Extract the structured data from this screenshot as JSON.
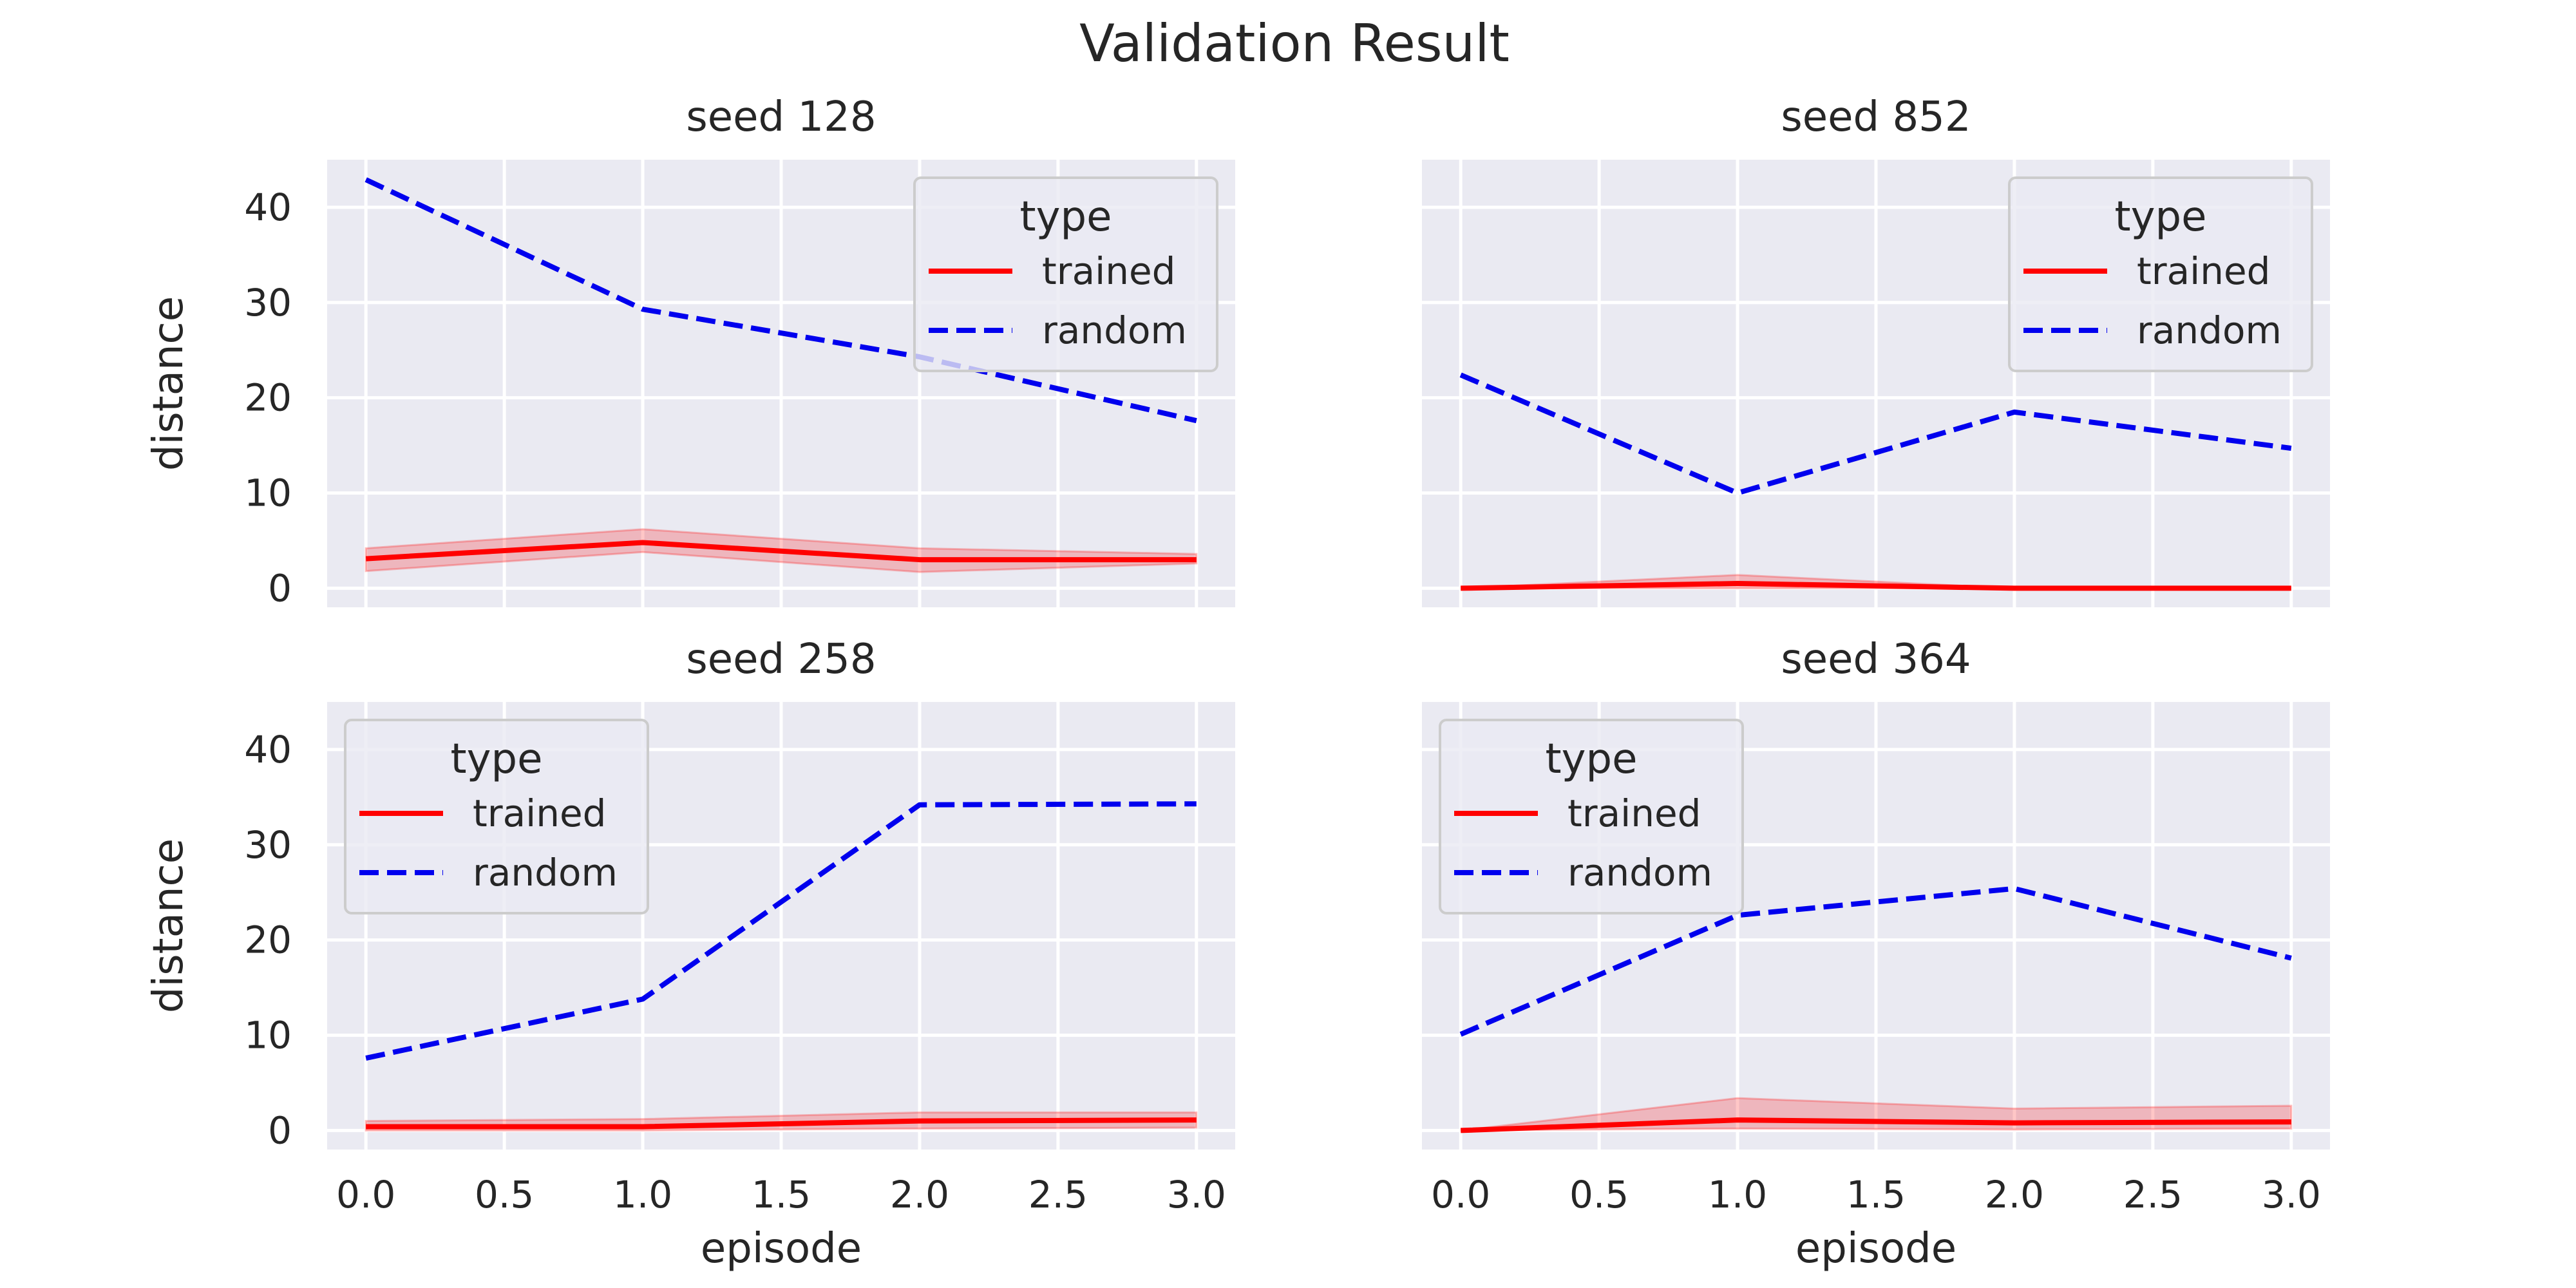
{
  "figure": {
    "title": "Validation Result"
  },
  "chart_data": [
    {
      "type": "line",
      "title": "seed 128",
      "xlabel": "",
      "ylabel": "distance",
      "x": [
        0,
        1,
        2,
        3
      ],
      "xlim": [
        -0.14,
        3.14
      ],
      "ylim": [
        -2,
        45
      ],
      "xticks": [
        "0.0",
        "0.5",
        "1.0",
        "1.5",
        "2.0",
        "2.5",
        "3.0"
      ],
      "yticks": [
        "0",
        "10",
        "20",
        "30",
        "40"
      ],
      "show_xtick_labels": false,
      "show_ytick_labels": true,
      "grid": true,
      "legend": {
        "title": "type",
        "position": "upper-right"
      },
      "series": [
        {
          "name": "trained",
          "values": [
            3.1,
            4.8,
            3.0,
            3.0
          ],
          "ci_low": [
            1.8,
            3.8,
            1.7,
            2.6
          ],
          "ci_high": [
            4.2,
            6.2,
            4.2,
            3.6
          ],
          "color": "#ff0000",
          "style": "solid"
        },
        {
          "name": "random",
          "values": [
            42.9,
            29.3,
            24.3,
            17.6
          ],
          "color": "#0000ee",
          "style": "dashed"
        }
      ]
    },
    {
      "type": "line",
      "title": "seed 852",
      "xlabel": "",
      "ylabel": "",
      "x": [
        0,
        1,
        2,
        3
      ],
      "xlim": [
        -0.14,
        3.14
      ],
      "ylim": [
        -2,
        45
      ],
      "xticks": [
        "0.0",
        "0.5",
        "1.0",
        "1.5",
        "2.0",
        "2.5",
        "3.0"
      ],
      "yticks": [
        "0",
        "10",
        "20",
        "30",
        "40"
      ],
      "show_xtick_labels": false,
      "show_ytick_labels": false,
      "grid": true,
      "legend": {
        "title": "type",
        "position": "upper-right"
      },
      "series": [
        {
          "name": "trained",
          "values": [
            0.0,
            0.5,
            0.0,
            0.0
          ],
          "ci_low": [
            0.0,
            0.0,
            0.0,
            0.0
          ],
          "ci_high": [
            0.0,
            1.4,
            0.0,
            0.0
          ],
          "color": "#ff0000",
          "style": "solid"
        },
        {
          "name": "random",
          "values": [
            22.4,
            10.0,
            18.5,
            14.7
          ],
          "color": "#0000ee",
          "style": "dashed"
        }
      ]
    },
    {
      "type": "line",
      "title": "seed 258",
      "xlabel": "episode",
      "ylabel": "distance",
      "x": [
        0,
        1,
        2,
        3
      ],
      "xlim": [
        -0.14,
        3.14
      ],
      "ylim": [
        -2,
        45
      ],
      "xticks": [
        "0.0",
        "0.5",
        "1.0",
        "1.5",
        "2.0",
        "2.5",
        "3.0"
      ],
      "yticks": [
        "0",
        "10",
        "20",
        "30",
        "40"
      ],
      "show_xtick_labels": true,
      "show_ytick_labels": true,
      "grid": true,
      "legend": {
        "title": "type",
        "position": "upper-left"
      },
      "series": [
        {
          "name": "trained",
          "values": [
            0.4,
            0.4,
            1.0,
            1.1
          ],
          "ci_low": [
            0.0,
            0.0,
            0.2,
            0.3
          ],
          "ci_high": [
            1.0,
            1.2,
            1.9,
            1.9
          ],
          "color": "#ff0000",
          "style": "solid"
        },
        {
          "name": "random",
          "values": [
            7.6,
            13.8,
            34.2,
            34.3
          ],
          "color": "#0000ee",
          "style": "dashed"
        }
      ]
    },
    {
      "type": "line",
      "title": "seed 364",
      "xlabel": "episode",
      "ylabel": "",
      "x": [
        0,
        1,
        2,
        3
      ],
      "xlim": [
        -0.14,
        3.14
      ],
      "ylim": [
        -2,
        45
      ],
      "xticks": [
        "0.0",
        "0.5",
        "1.0",
        "1.5",
        "2.0",
        "2.5",
        "3.0"
      ],
      "yticks": [
        "0",
        "10",
        "20",
        "30",
        "40"
      ],
      "show_xtick_labels": true,
      "show_ytick_labels": false,
      "grid": true,
      "legend": {
        "title": "type",
        "position": "upper-left"
      },
      "series": [
        {
          "name": "trained",
          "values": [
            0.0,
            1.1,
            0.8,
            0.9
          ],
          "ci_low": [
            0.0,
            0.2,
            0.1,
            0.2
          ],
          "ci_high": [
            0.0,
            3.4,
            2.3,
            2.6
          ],
          "color": "#ff0000",
          "style": "solid"
        },
        {
          "name": "random",
          "values": [
            10.1,
            22.6,
            25.4,
            18.1
          ],
          "color": "#0000ee",
          "style": "dashed"
        }
      ]
    }
  ]
}
